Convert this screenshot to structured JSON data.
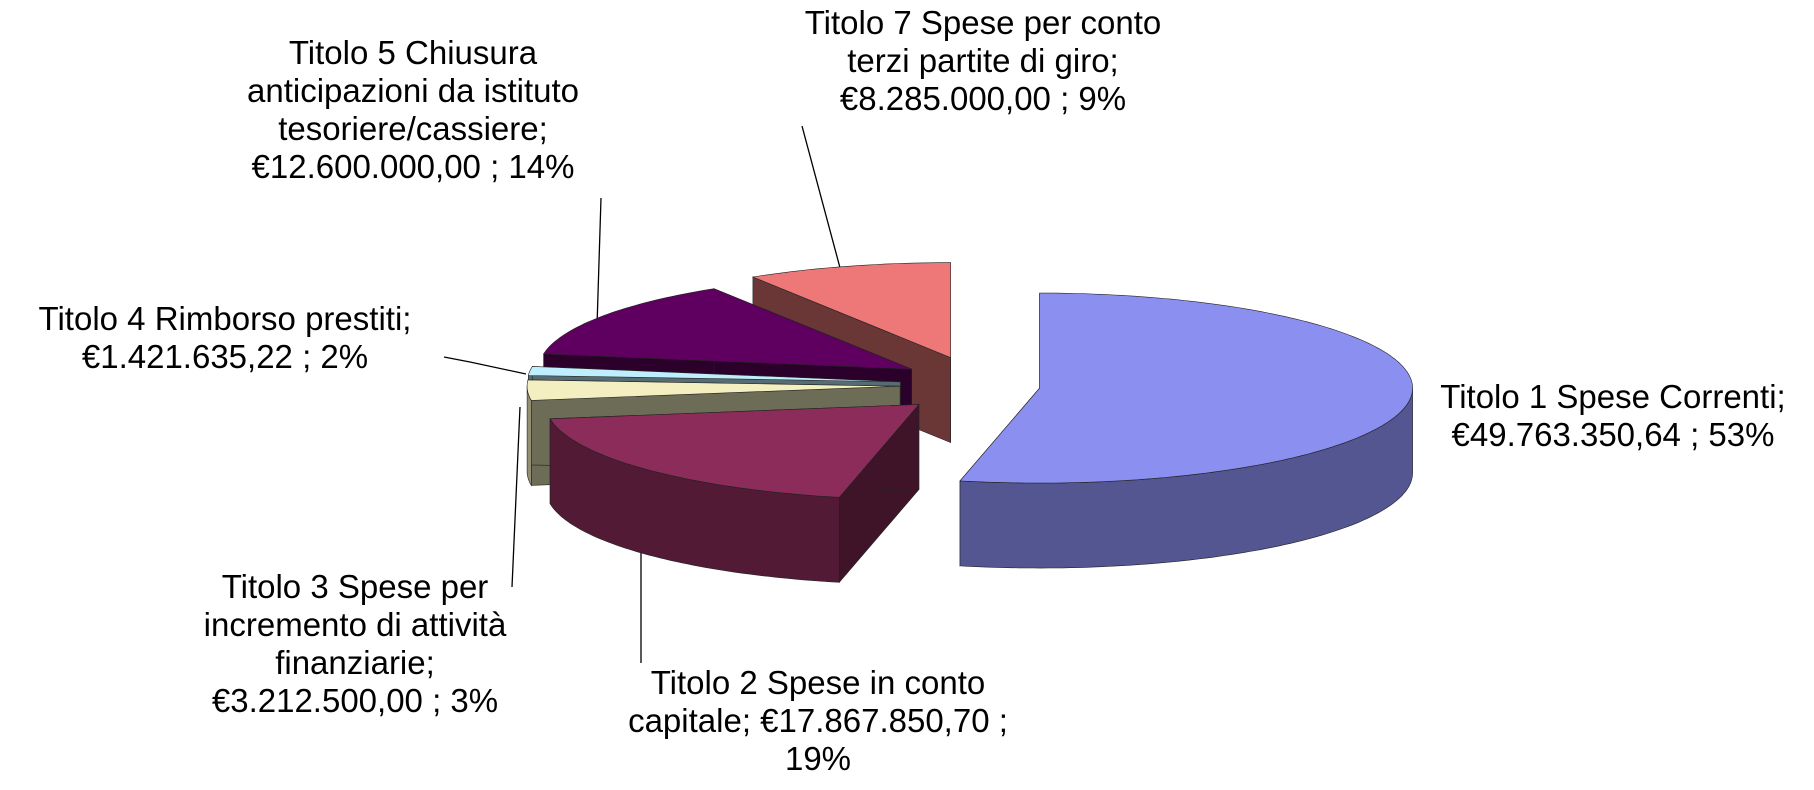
{
  "chart_data": {
    "type": "pie3d",
    "categories": [
      "Titolo 1 Spese Correnti",
      "Titolo 2 Spese in conto capitale",
      "Titolo 3 Spese per incremento di attività finanziarie",
      "Titolo 4 Rimborso prestiti",
      "Titolo 5 Chiusura anticipazioni da istituto tesoriere/cassiere",
      "Titolo 7 Spese per conto terzi partite di giro"
    ],
    "values": [
      49763350.64,
      17867850.7,
      3212500.0,
      1421635.22,
      12600000.0,
      8285000.0
    ],
    "value_labels": [
      "€49.763.350,64",
      "€17.867.850,70",
      "€3.212.500,00",
      "€1.421.635,22",
      "€12.600.000,00",
      "€8.285.000,00"
    ],
    "percentages": [
      53,
      19,
      3,
      2,
      14,
      9
    ],
    "percent_labels": [
      "53%",
      "19%",
      "3%",
      "2%",
      "14%",
      "9%"
    ],
    "separator": ";",
    "colors": [
      "#8a8ff0",
      "#8b2c5a",
      "#f3efc0",
      "#bfefff",
      "#5f0060",
      "#ee7777"
    ]
  }
}
